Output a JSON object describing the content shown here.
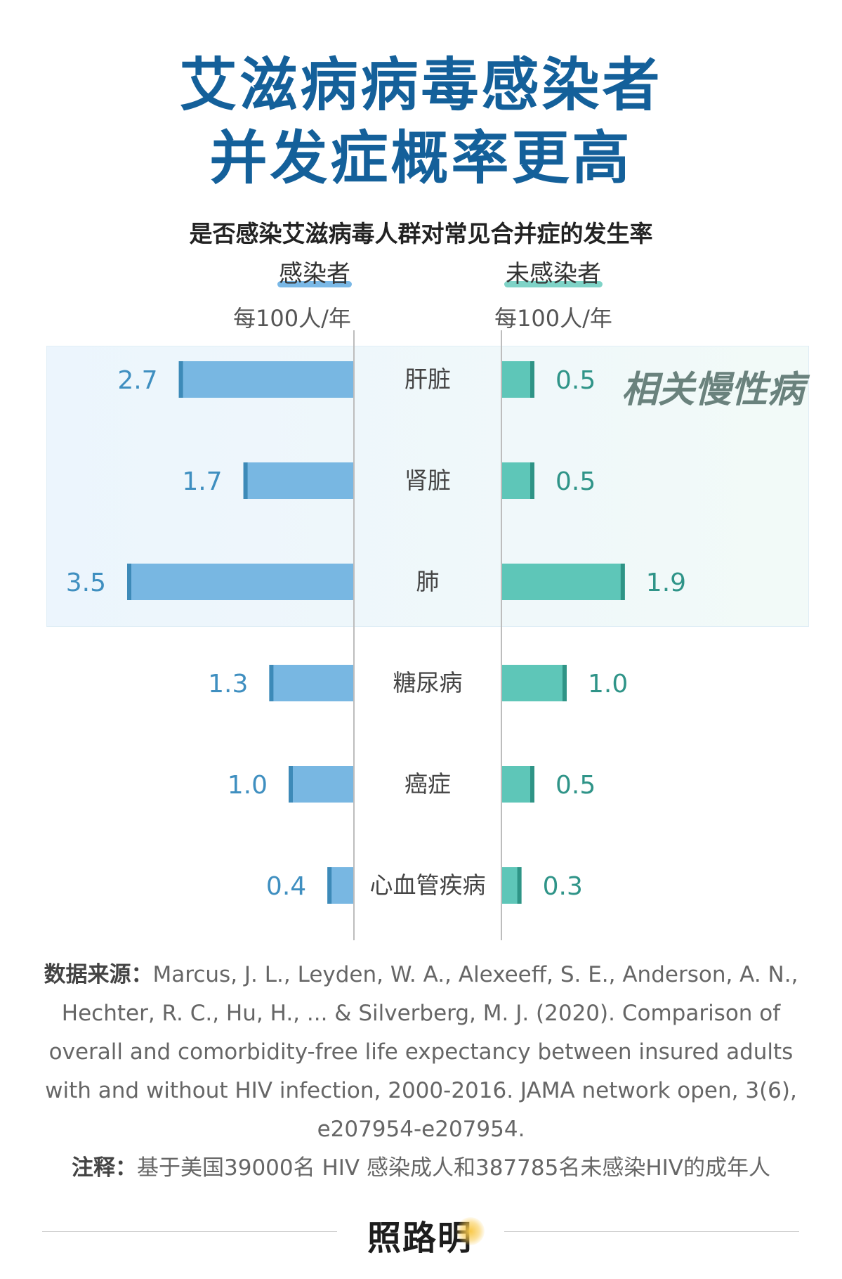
{
  "title": {
    "line1": "艾滋病病毒感染者",
    "line2": "并发症概率更高"
  },
  "chart_data": {
    "type": "bar",
    "title": "是否感染艾滋病毒人群对常见合并症的发生率",
    "categories": [
      "肝脏",
      "肾脏",
      "肺",
      "糖尿病",
      "癌症",
      "心血管疾病"
    ],
    "series": [
      {
        "name": "感染者",
        "unit": "每100人/年",
        "values": [
          2.7,
          1.7,
          3.5,
          1.3,
          1.0,
          0.4
        ],
        "color": "#78b7e2",
        "edge_color": "#3d8ab8"
      },
      {
        "name": "未感染者",
        "unit": "每100人/年",
        "values": [
          0.5,
          0.5,
          1.9,
          1.0,
          0.5,
          0.3
        ],
        "color": "#5ec6b8",
        "edge_color": "#2f9486"
      }
    ],
    "highlight": {
      "label": "相关慢性病",
      "categories": [
        "肝脏",
        "肾脏",
        "肺"
      ]
    }
  },
  "source": {
    "label": "数据来源：",
    "text": "Marcus, J. L., Leyden, W. A., Alexeeff, S. E., Anderson, A. N., Hechter, R. C., Hu, H., ... & Silverberg, M. J. (2020). Comparison of overall and comorbidity-free life expectancy between insured adults with and without HIV infection, 2000-2016. JAMA network open, 3(6), e207954-e207954."
  },
  "note": {
    "label": "注释：",
    "text": "基于美国39000名 HIV 感染成人和387785名未感染HIV的成年人"
  },
  "brand": {
    "name": "照路明"
  }
}
